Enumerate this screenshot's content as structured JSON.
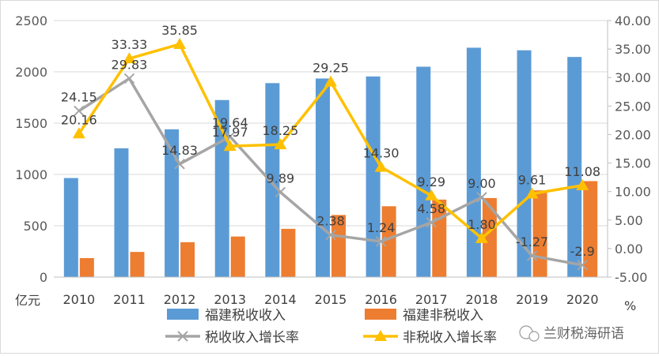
{
  "chart_data": {
    "type": "bar",
    "categories": [
      "2010",
      "2011",
      "2012",
      "2013",
      "2014",
      "2015",
      "2016",
      "2017",
      "2018",
      "2019",
      "2020"
    ],
    "left_axis": {
      "unit": "亿元",
      "ylim": [
        0,
        2500
      ],
      "ticks": [
        "0",
        "500",
        "1000",
        "1500",
        "2000",
        "2500"
      ]
    },
    "right_axis": {
      "unit": "%",
      "ylim": [
        -5,
        40
      ],
      "ticks": [
        "-5.00",
        "0.00",
        "5.00",
        "10.00",
        "15.00",
        "20.00",
        "25.00",
        "30.00",
        "35.00",
        "40.00"
      ]
    },
    "series": [
      {
        "name": "福建税收收入",
        "type": "bar",
        "axis": "left",
        "color": "#5b9bd5",
        "values": [
          965,
          1255,
          1440,
          1725,
          1890,
          1935,
          1955,
          2050,
          2235,
          2210,
          2145
        ]
      },
      {
        "name": "福建非税收入",
        "type": "bar",
        "axis": "left",
        "color": "#ed7d31",
        "values": [
          185,
          245,
          340,
          395,
          470,
          605,
          690,
          755,
          770,
          845,
          935
        ]
      },
      {
        "name": "税收收入增长率",
        "type": "line",
        "axis": "right",
        "color": "#a5a5a5",
        "marker": "x",
        "values": [
          24.15,
          29.83,
          14.83,
          19.64,
          9.89,
          2.38,
          1.24,
          4.58,
          9.0,
          -1.27,
          -2.9
        ],
        "labels": [
          "24.15",
          "29.83",
          "14.83",
          "19.64",
          "9.89",
          "2.38",
          "1.24",
          "4.58",
          "9.00",
          "-1.27",
          "-2.9"
        ]
      },
      {
        "name": "非税收入增长率",
        "type": "line",
        "axis": "right",
        "color": "#ffc000",
        "marker": "triangle",
        "values": [
          20.16,
          33.33,
          35.85,
          17.97,
          18.25,
          29.25,
          14.3,
          9.29,
          1.8,
          9.61,
          11.08
        ],
        "labels": [
          "20.16",
          "33.33",
          "35.85",
          "17.97",
          "18.25",
          "29.25",
          "14.30",
          "9.29",
          "1.80",
          "9.61",
          "11.08"
        ]
      }
    ],
    "grid": true,
    "legend": "bottom"
  },
  "watermark": {
    "text": "兰财税海研语"
  }
}
